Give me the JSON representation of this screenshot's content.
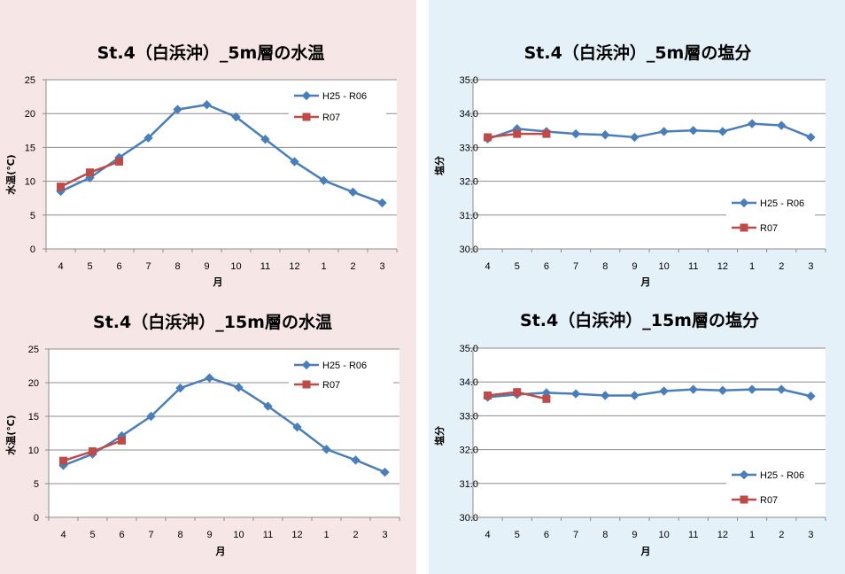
{
  "chart_data": [
    {
      "type": "line",
      "title": "St.4（白浜沖）_5m層の水温",
      "xlabel": "月",
      "ylabel": "水温(℃)",
      "categories": [
        "4",
        "5",
        "6",
        "7",
        "8",
        "9",
        "10",
        "11",
        "12",
        "1",
        "2",
        "3"
      ],
      "ylim": [
        0,
        25
      ],
      "yticks": [
        "0",
        "5",
        "10",
        "15",
        "20",
        "25"
      ],
      "legend_position": "top-right",
      "series": [
        {
          "name": "H25 - R06",
          "color": "#4a7ebb",
          "marker": "diamond",
          "values": [
            8.5,
            10.5,
            13.5,
            16.4,
            20.6,
            21.3,
            19.5,
            16.2,
            12.9,
            10.1,
            8.4,
            6.8
          ]
        },
        {
          "name": "R07",
          "color": "#be4b48",
          "marker": "square",
          "values": [
            9.2,
            11.3,
            12.9,
            null,
            null,
            null,
            null,
            null,
            null,
            null,
            null,
            null
          ]
        }
      ]
    },
    {
      "type": "line",
      "title": "St.4（白浜沖）_5m層の塩分",
      "xlabel": "月",
      "ylabel": "塩分",
      "categories": [
        "4",
        "5",
        "6",
        "7",
        "8",
        "9",
        "10",
        "11",
        "12",
        "1",
        "2",
        "3"
      ],
      "ylim": [
        30,
        35
      ],
      "yticks": [
        "30.0",
        "31.0",
        "32.0",
        "33.0",
        "34.0",
        "35.0"
      ],
      "legend_position": "bottom-right",
      "series": [
        {
          "name": "H25 - R06",
          "color": "#4a7ebb",
          "marker": "diamond",
          "values": [
            33.25,
            33.55,
            33.47,
            33.4,
            33.37,
            33.3,
            33.47,
            33.5,
            33.47,
            33.7,
            33.65,
            33.3
          ]
        },
        {
          "name": "R07",
          "color": "#be4b48",
          "marker": "square",
          "values": [
            33.3,
            33.4,
            33.4,
            null,
            null,
            null,
            null,
            null,
            null,
            null,
            null,
            null
          ]
        }
      ]
    },
    {
      "type": "line",
      "title": "St.4（白浜沖）_15m層の水温",
      "xlabel": "月",
      "ylabel": "水温(℃)",
      "categories": [
        "4",
        "5",
        "6",
        "7",
        "8",
        "9",
        "10",
        "11",
        "12",
        "1",
        "2",
        "3"
      ],
      "ylim": [
        0,
        25
      ],
      "yticks": [
        "0",
        "5",
        "10",
        "15",
        "20",
        "25"
      ],
      "legend_position": "top-right",
      "series": [
        {
          "name": "H25 - R06",
          "color": "#4a7ebb",
          "marker": "diamond",
          "values": [
            7.7,
            9.4,
            12.1,
            15.0,
            19.2,
            20.7,
            19.3,
            16.5,
            13.4,
            10.1,
            8.5,
            6.7
          ]
        },
        {
          "name": "R07",
          "color": "#be4b48",
          "marker": "square",
          "values": [
            8.4,
            9.8,
            11.4,
            null,
            null,
            null,
            null,
            null,
            null,
            null,
            null,
            null
          ]
        }
      ]
    },
    {
      "type": "line",
      "title": "St.4（白浜沖）_15m層の塩分",
      "xlabel": "月",
      "ylabel": "塩分",
      "categories": [
        "4",
        "5",
        "6",
        "7",
        "8",
        "9",
        "10",
        "11",
        "12",
        "1",
        "2",
        "3"
      ],
      "ylim": [
        30,
        35
      ],
      "yticks": [
        "30.0",
        "31.0",
        "32.0",
        "33.0",
        "34.0",
        "35.0"
      ],
      "legend_position": "bottom-right",
      "series": [
        {
          "name": "H25 - R06",
          "color": "#4a7ebb",
          "marker": "diamond",
          "values": [
            33.55,
            33.63,
            33.68,
            33.65,
            33.6,
            33.6,
            33.73,
            33.78,
            33.75,
            33.78,
            33.78,
            33.58
          ]
        },
        {
          "name": "R07",
          "color": "#be4b48",
          "marker": "square",
          "values": [
            33.6,
            33.7,
            33.5,
            null,
            null,
            null,
            null,
            null,
            null,
            null,
            null,
            null
          ]
        }
      ]
    }
  ]
}
